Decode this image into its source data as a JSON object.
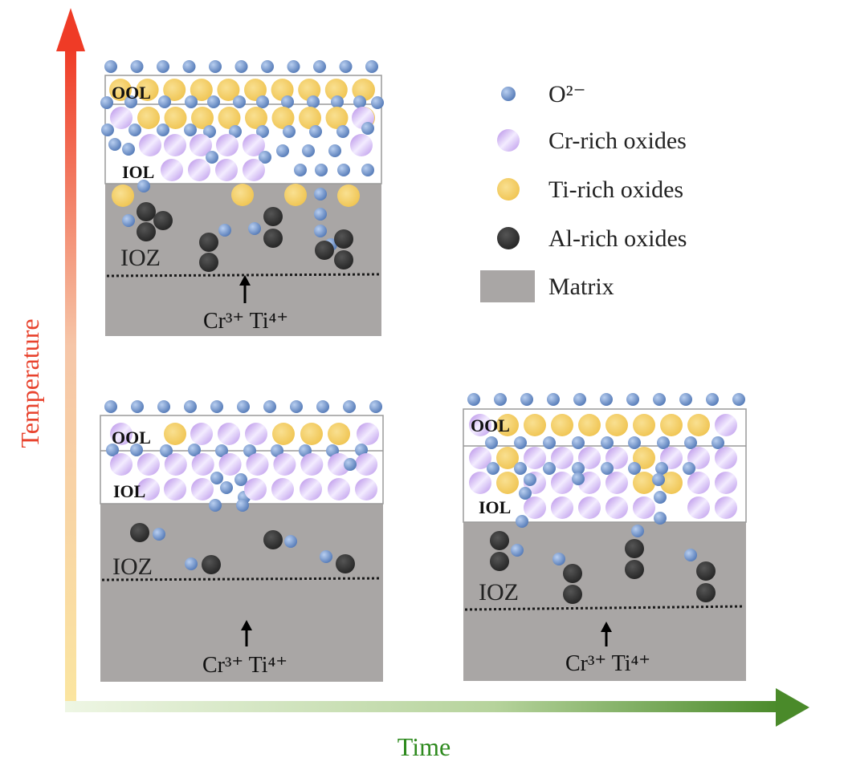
{
  "axes": {
    "y_label": "Temperature",
    "x_label": "Time",
    "y_color": "#e8432e",
    "x_color": "#2e8a1e"
  },
  "legend": [
    {
      "label": "O²⁻",
      "kind": "o",
      "icon": "oxygen-ion-icon"
    },
    {
      "label": "Cr-rich oxides",
      "kind": "cr",
      "icon": "cr-oxide-icon"
    },
    {
      "label": "Ti-rich oxides",
      "kind": "ti",
      "icon": "ti-oxide-icon"
    },
    {
      "label": "Al-rich oxides",
      "kind": "al",
      "icon": "al-oxide-icon"
    },
    {
      "label": "Matrix",
      "kind": "matrix",
      "icon": "matrix-swatch-icon"
    }
  ],
  "panels": [
    {
      "id": "high-temp",
      "ool": "OOL",
      "iol": "IOL",
      "ioz": "IOZ",
      "cations": "Cr³⁺ Ti⁴⁺"
    },
    {
      "id": "low-temp-short",
      "ool": "OOL",
      "iol": "IOL",
      "ioz": "IOZ",
      "cations": "Cr³⁺ Ti⁴⁺"
    },
    {
      "id": "low-temp-long",
      "ool": "OOL",
      "iol": "IOL",
      "ioz": "IOZ",
      "cations": "Cr³⁺ Ti⁴⁺"
    }
  ],
  "colors": {
    "oxygen": "#6f93c8",
    "cr": "#c5a9ee",
    "ti": "#f3cf6a",
    "al": "#3a3a3a",
    "matrix": "#a9a6a5"
  }
}
